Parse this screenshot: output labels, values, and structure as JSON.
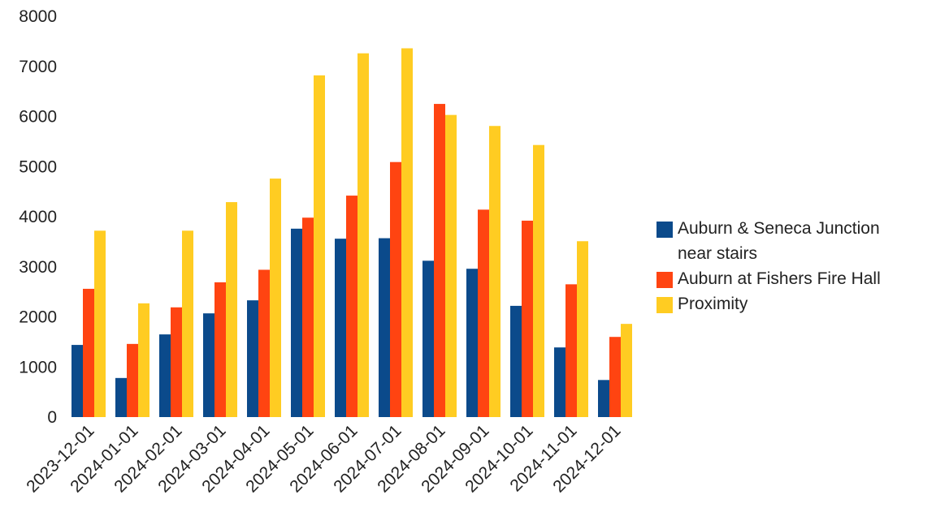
{
  "chart_data": {
    "type": "bar",
    "categories": [
      "2023-12-01",
      "2024-01-01",
      "2024-02-01",
      "2024-03-01",
      "2024-04-01",
      "2024-05-01",
      "2024-06-01",
      "2024-07-01",
      "2024-08-01",
      "2024-09-01",
      "2024-10-01",
      "2024-11-01",
      "2024-12-01"
    ],
    "series": [
      {
        "name": "Auburn & Seneca Junction near stairs",
        "color": "#0b4a8b",
        "values": [
          1440,
          780,
          1650,
          2070,
          2330,
          3760,
          3560,
          3570,
          3120,
          2960,
          2220,
          1390,
          740
        ]
      },
      {
        "name": "Auburn at Fishers Fire Hall",
        "color": "#ff4411",
        "values": [
          2560,
          1460,
          2190,
          2690,
          2940,
          3980,
          4420,
          5090,
          6250,
          4140,
          3920,
          2650,
          1600
        ]
      },
      {
        "name": "Proximity",
        "color": "#ffcc22",
        "values": [
          3720,
          2270,
          3720,
          4290,
          4760,
          6820,
          7260,
          7360,
          6030,
          5810,
          5430,
          3510,
          1860
        ]
      }
    ],
    "ylim": [
      0,
      8000
    ],
    "yticks": [
      "0",
      "1000",
      "2000",
      "3000",
      "4000",
      "5000",
      "6000",
      "7000",
      "8000"
    ],
    "legend_position": "right",
    "legend_lines": [
      [
        "Auburn & Seneca Junction",
        "near stairs"
      ],
      [
        "Auburn at Fishers Fire Hall"
      ],
      [
        "Proximity"
      ]
    ],
    "grid": false,
    "title": "",
    "xlabel": "",
    "ylabel": ""
  }
}
